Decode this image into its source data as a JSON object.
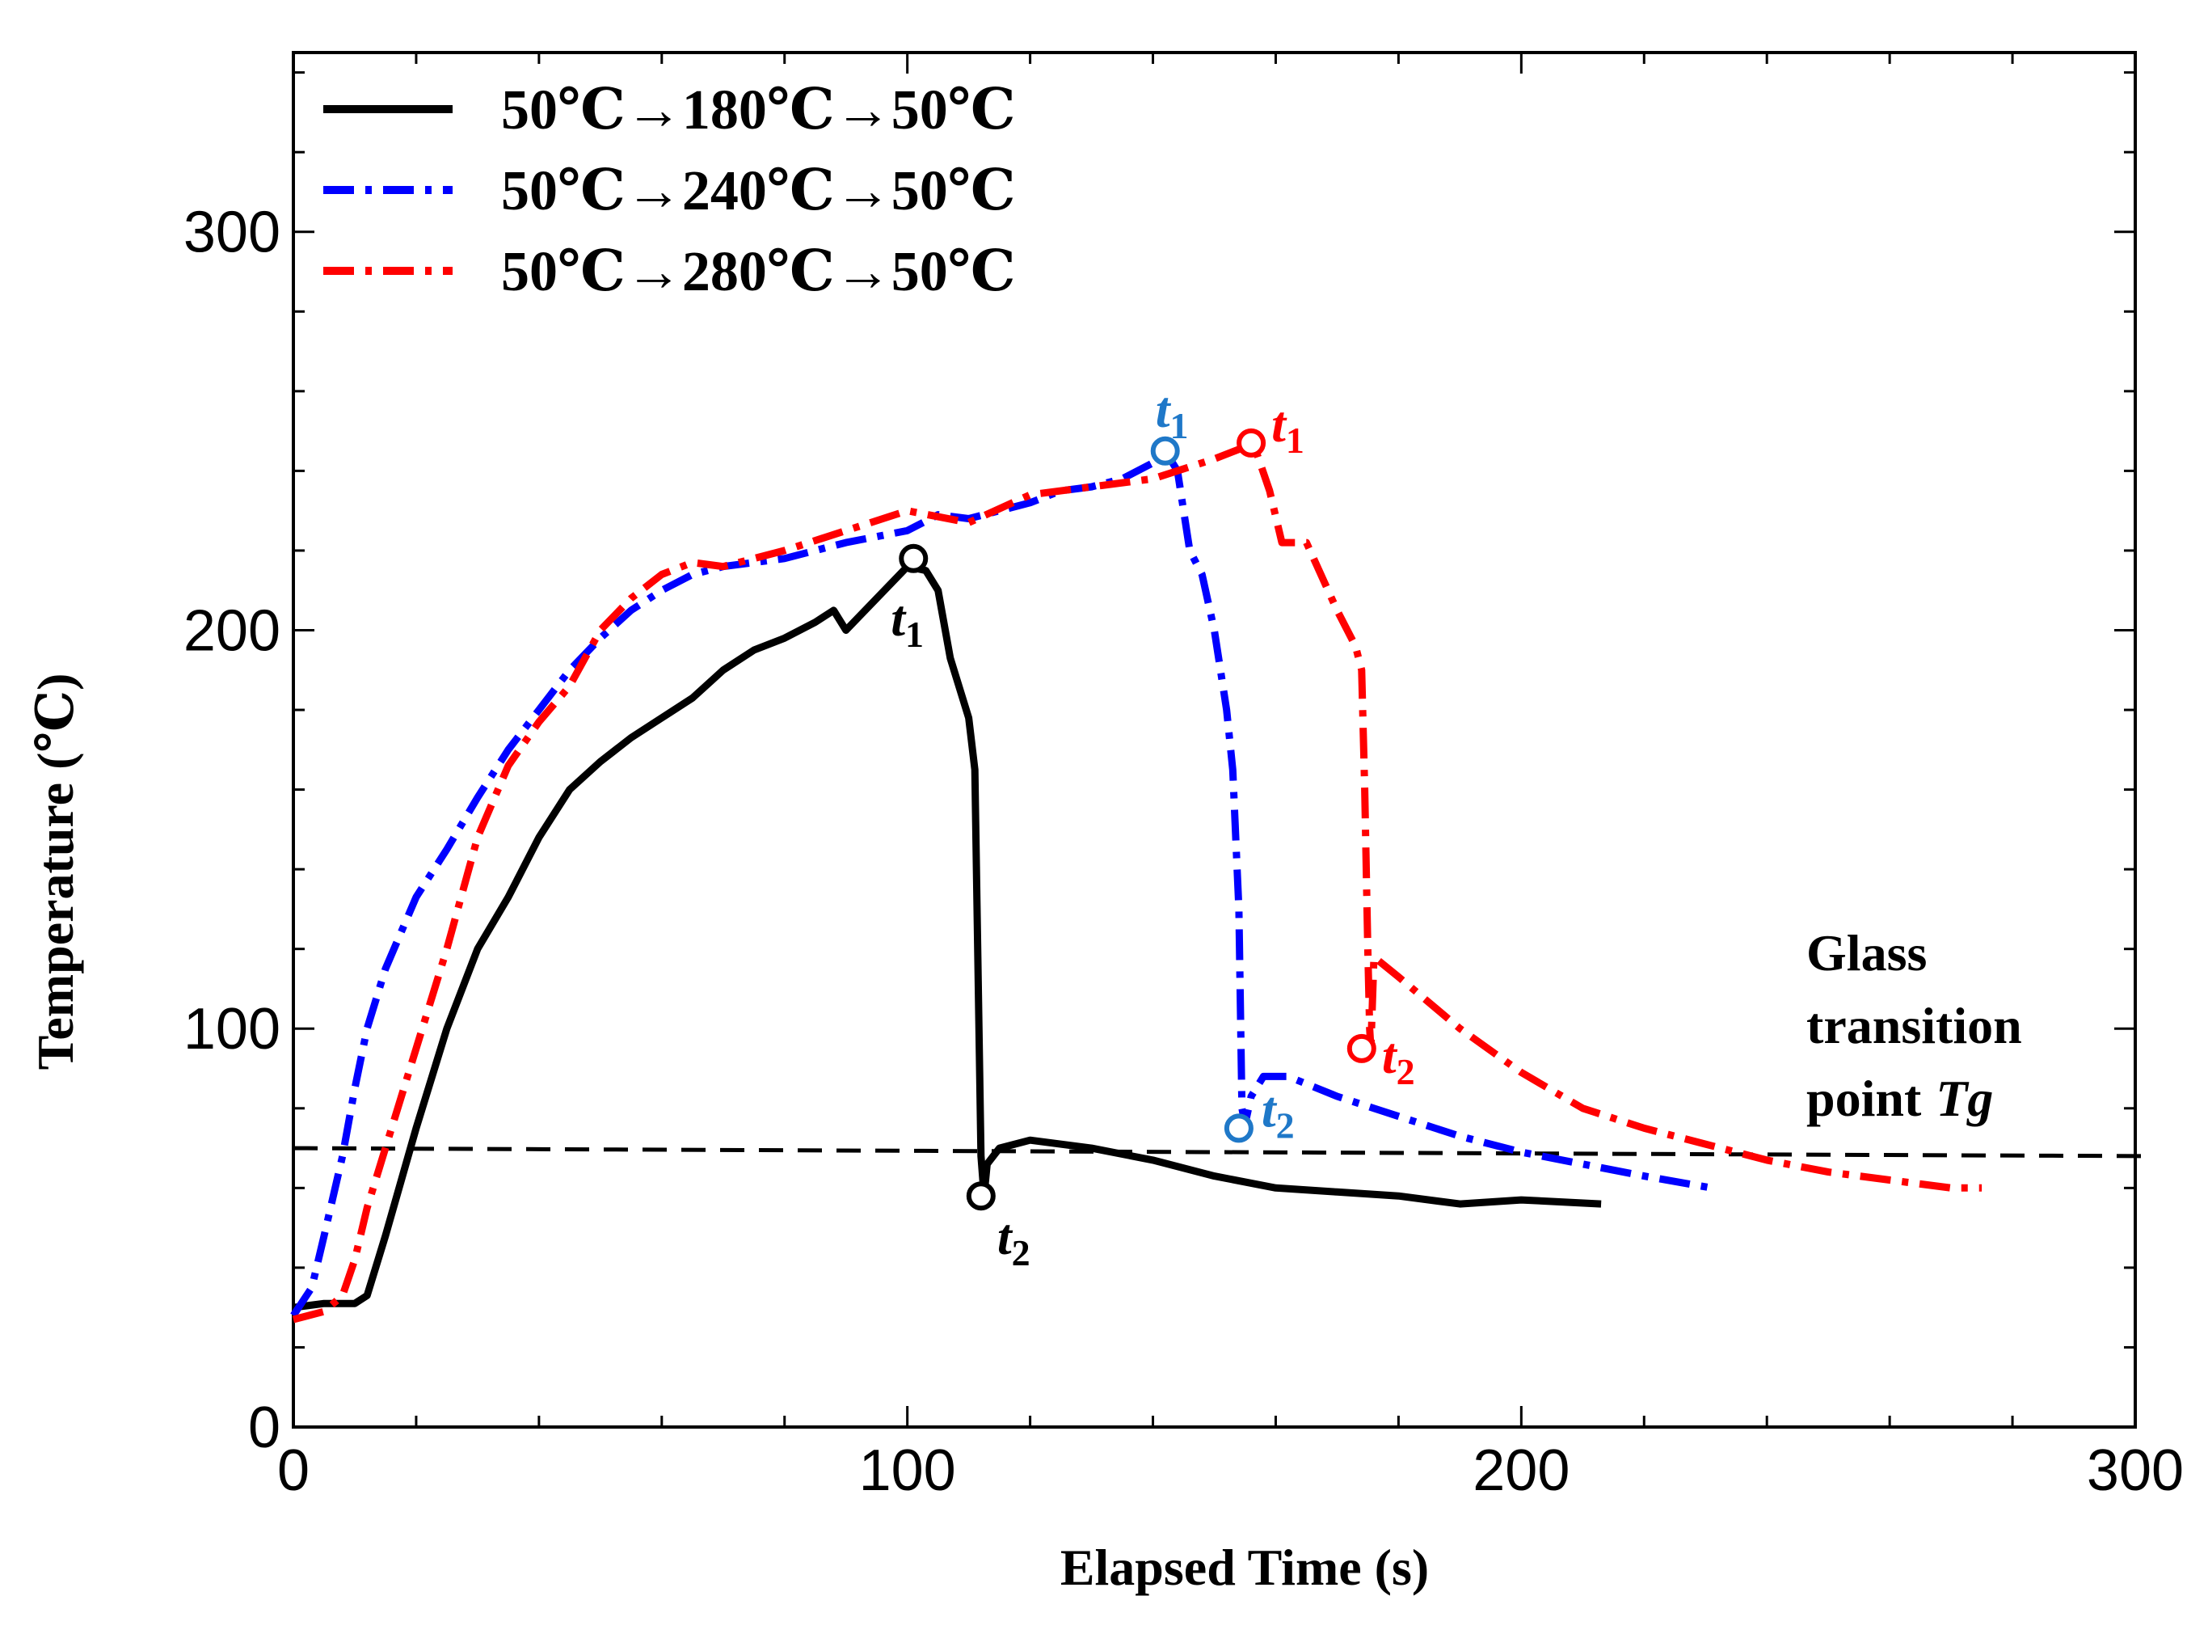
{
  "chart_data": {
    "type": "line",
    "title": "",
    "xlabel": "Elapsed Time (s)",
    "ylabel": "Temperature (℃)",
    "xlim": [
      0,
      300
    ],
    "ylim": [
      0,
      345
    ],
    "x_major_ticks": [
      0,
      100,
      200,
      300
    ],
    "y_major_ticks": [
      0,
      100,
      200,
      300
    ],
    "x_minor_step": 20,
    "y_minor_step": 20,
    "grid": false,
    "legend_position": "top-left",
    "series": [
      {
        "name": "50℃→180℃→50℃",
        "color": "#000000",
        "style": "solid",
        "points": [
          [
            0,
            30
          ],
          [
            5,
            31
          ],
          [
            10,
            31
          ],
          [
            12,
            33
          ],
          [
            15,
            48
          ],
          [
            20,
            75
          ],
          [
            25,
            100
          ],
          [
            30,
            120
          ],
          [
            35,
            133
          ],
          [
            40,
            148
          ],
          [
            45,
            160
          ],
          [
            50,
            167
          ],
          [
            55,
            173
          ],
          [
            60,
            178
          ],
          [
            65,
            183
          ],
          [
            70,
            190
          ],
          [
            75,
            195
          ],
          [
            80,
            198
          ],
          [
            85,
            202
          ],
          [
            88,
            205
          ],
          [
            90,
            200
          ],
          [
            95,
            208
          ],
          [
            100,
            216
          ],
          [
            103,
            215
          ],
          [
            105,
            210
          ],
          [
            107,
            193
          ],
          [
            110,
            178
          ],
          [
            111,
            165
          ],
          [
            112,
            68
          ],
          [
            112.5,
            58
          ],
          [
            113,
            66
          ],
          [
            115,
            70
          ],
          [
            120,
            72
          ],
          [
            130,
            70
          ],
          [
            140,
            67
          ],
          [
            150,
            63
          ],
          [
            160,
            60
          ],
          [
            170,
            59
          ],
          [
            180,
            58
          ],
          [
            190,
            56
          ],
          [
            200,
            57
          ],
          [
            213,
            56
          ]
        ]
      },
      {
        "name": "50℃→240℃→50℃",
        "color": "#0000ff",
        "style": "dash-dot",
        "points": [
          [
            0,
            28
          ],
          [
            3,
            35
          ],
          [
            5,
            48
          ],
          [
            8,
            68
          ],
          [
            10,
            85
          ],
          [
            12,
            100
          ],
          [
            15,
            115
          ],
          [
            20,
            133
          ],
          [
            25,
            145
          ],
          [
            30,
            158
          ],
          [
            35,
            170
          ],
          [
            40,
            180
          ],
          [
            45,
            190
          ],
          [
            50,
            198
          ],
          [
            55,
            205
          ],
          [
            60,
            210
          ],
          [
            65,
            214
          ],
          [
            70,
            216
          ],
          [
            80,
            218
          ],
          [
            90,
            222
          ],
          [
            100,
            225
          ],
          [
            105,
            229
          ],
          [
            110,
            228
          ],
          [
            115,
            230
          ],
          [
            120,
            232
          ],
          [
            125,
            235
          ],
          [
            130,
            236
          ],
          [
            135,
            238
          ],
          [
            140,
            242
          ],
          [
            142,
            245
          ],
          [
            144,
            240
          ],
          [
            146,
            220
          ],
          [
            148,
            214
          ],
          [
            150,
            200
          ],
          [
            152,
            180
          ],
          [
            153,
            165
          ],
          [
            154,
            130
          ],
          [
            154.5,
            80
          ],
          [
            155,
            76
          ],
          [
            156,
            83
          ],
          [
            158,
            88
          ],
          [
            162,
            88
          ],
          [
            170,
            83
          ],
          [
            180,
            78
          ],
          [
            190,
            73
          ],
          [
            200,
            69
          ],
          [
            210,
            66
          ],
          [
            220,
            63
          ],
          [
            231,
            60
          ]
        ]
      },
      {
        "name": "50℃→280℃→50℃",
        "color": "#ff0000",
        "style": "dash-dot",
        "points": [
          [
            0,
            27
          ],
          [
            5,
            29
          ],
          [
            8,
            33
          ],
          [
            10,
            42
          ],
          [
            12,
            55
          ],
          [
            15,
            70
          ],
          [
            20,
            95
          ],
          [
            25,
            120
          ],
          [
            30,
            148
          ],
          [
            35,
            166
          ],
          [
            40,
            177
          ],
          [
            45,
            186
          ],
          [
            50,
            200
          ],
          [
            55,
            208
          ],
          [
            60,
            214
          ],
          [
            65,
            217
          ],
          [
            70,
            216
          ],
          [
            80,
            220
          ],
          [
            90,
            225
          ],
          [
            100,
            230
          ],
          [
            110,
            227
          ],
          [
            120,
            234
          ],
          [
            130,
            236
          ],
          [
            140,
            238
          ],
          [
            150,
            243
          ],
          [
            155,
            246
          ],
          [
            157,
            244
          ],
          [
            159,
            235
          ],
          [
            161,
            222
          ],
          [
            165,
            222
          ],
          [
            170,
            205
          ],
          [
            173,
            196
          ],
          [
            174,
            190
          ],
          [
            174.5,
            160
          ],
          [
            175,
            120
          ],
          [
            175.3,
            100
          ],
          [
            175.5,
            95
          ],
          [
            176,
            118
          ],
          [
            180,
            113
          ],
          [
            190,
            100
          ],
          [
            200,
            89
          ],
          [
            210,
            80
          ],
          [
            220,
            75
          ],
          [
            230,
            71
          ],
          [
            240,
            67
          ],
          [
            250,
            64
          ],
          [
            260,
            62
          ],
          [
            270,
            60
          ],
          [
            275,
            60
          ]
        ]
      }
    ],
    "reference_lines": [
      {
        "name": "Glass transition point Tg",
        "y_start": 70,
        "y_end": 68,
        "style": "dashed",
        "color": "#000000"
      }
    ],
    "annotations": [
      {
        "series": 0,
        "marker": "t1",
        "x": 101,
        "y": 218,
        "color": "#000000"
      },
      {
        "series": 0,
        "marker": "t2",
        "x": 112,
        "y": 58,
        "color": "#000000"
      },
      {
        "series": 1,
        "marker": "t1",
        "x": 142,
        "y": 245,
        "color": "#1f78c8"
      },
      {
        "series": 1,
        "marker": "t2",
        "x": 154,
        "y": 75,
        "color": "#1f78c8"
      },
      {
        "series": 2,
        "marker": "t1",
        "x": 156,
        "y": 247,
        "color": "#ff0000"
      },
      {
        "series": 2,
        "marker": "t2",
        "x": 174,
        "y": 95,
        "color": "#ff0000"
      }
    ],
    "tg_label": [
      "Glass",
      "transition",
      "point"
    ],
    "tg_symbol": "Tg",
    "marker_text": {
      "t": "t",
      "sub1": "1",
      "sub2": "2"
    }
  }
}
